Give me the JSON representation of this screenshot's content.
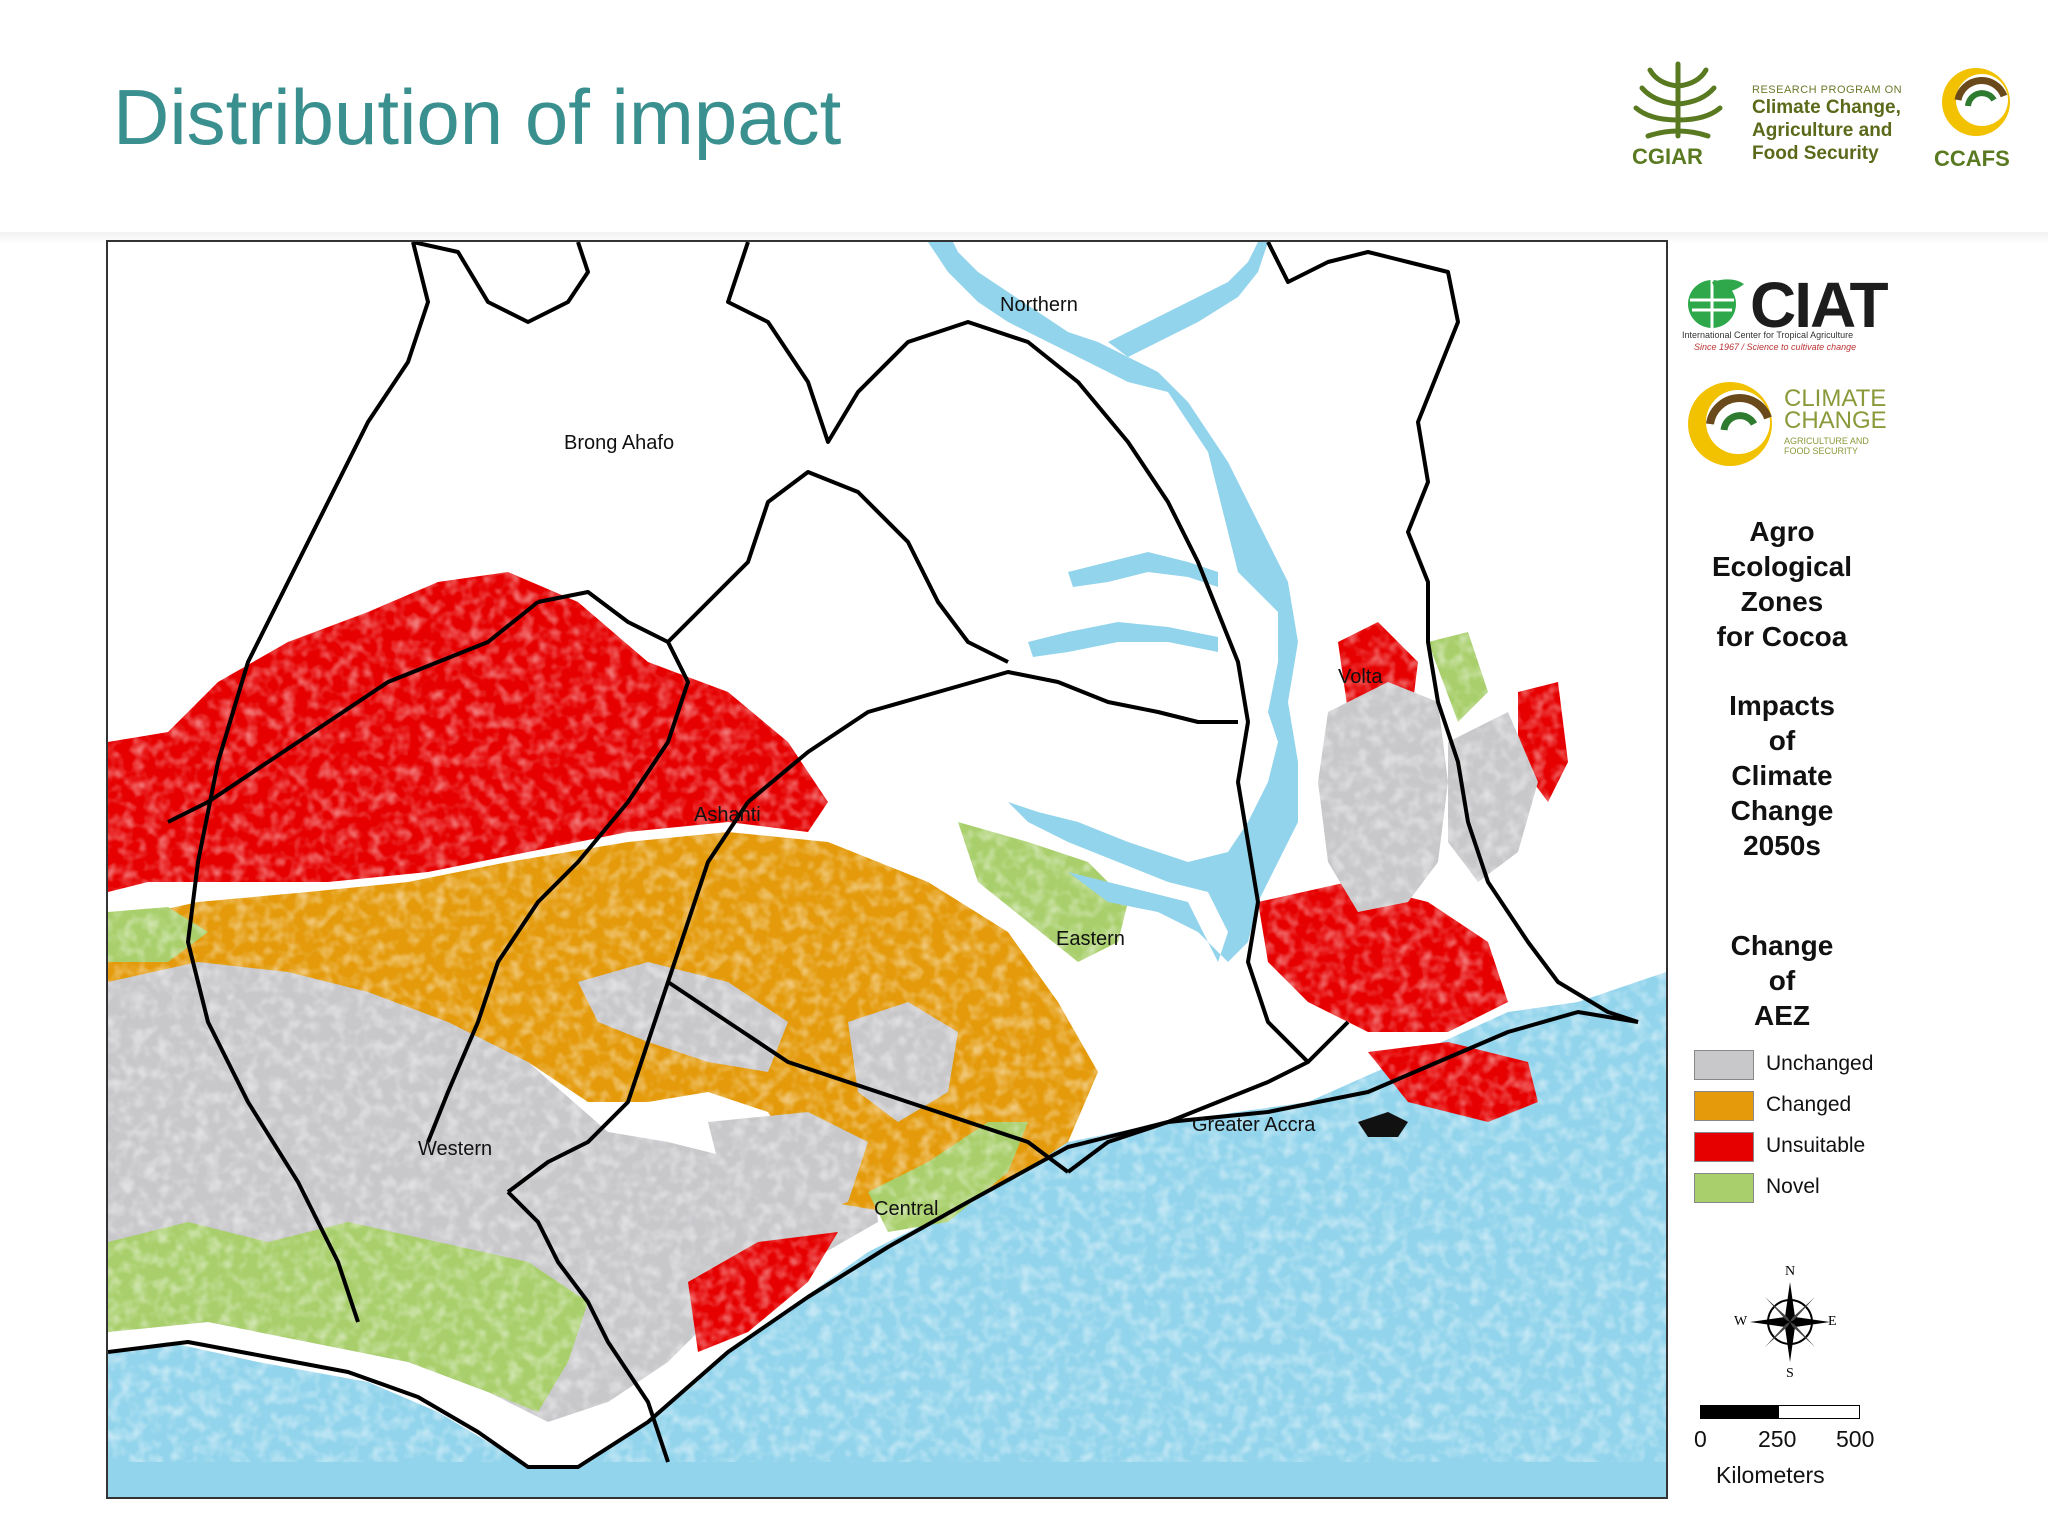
{
  "slide": {
    "title": "Distribution of impact"
  },
  "header_logos": {
    "cgiar": "CGIAR",
    "research_program_small": "RESEARCH PROGRAM ON",
    "research_program_lines": [
      "Climate Change,",
      "Agriculture and",
      "Food Security"
    ],
    "ccafs": "CCAFS"
  },
  "side_logos": {
    "ciat_word": "CIAT",
    "ciat_sub1": "International Center for Tropical Agriculture",
    "ciat_sub2": "Since 1967 / Science to cultivate change",
    "cc_line1": "CLIMATE",
    "cc_line2": "CHANGE",
    "cc_line3": "AGRICULTURE AND",
    "cc_line4": "FOOD SECURITY"
  },
  "map": {
    "regions": [
      "Northern",
      "Brong Ahafo",
      "Volta",
      "Ashanti",
      "Eastern",
      "Greater Accra",
      "Western",
      "Central"
    ],
    "colors": {
      "unchanged": "#c8c8cb",
      "changed": "#e49a0a",
      "unsuitable": "#e60000",
      "novel": "#a8cf6b",
      "water": "#92d4ec",
      "boundary": "#000000"
    }
  },
  "legend": {
    "title_block_1": [
      "Agro",
      "Ecological",
      "Zones",
      "for Cocoa"
    ],
    "title_block_2": [
      "Impacts",
      "of",
      "Climate",
      "Change",
      "2050s"
    ],
    "title_block_3": [
      "Change",
      "of",
      "AEZ"
    ],
    "items": [
      {
        "label": "Unchanged",
        "color": "#c8c8cb"
      },
      {
        "label": "Changed",
        "color": "#e49a0a"
      },
      {
        "label": "Unsuitable",
        "color": "#e60000"
      },
      {
        "label": "Novel",
        "color": "#a8cf6b"
      }
    ]
  },
  "compass": {
    "n": "N",
    "s": "S",
    "e": "E",
    "w": "W"
  },
  "scale": {
    "ticks": [
      "0",
      "250",
      "500"
    ],
    "unit": "Kilometers"
  }
}
